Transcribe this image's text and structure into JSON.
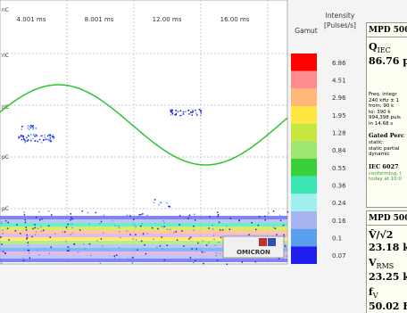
{
  "plot": {
    "time_labels": [
      "4.001 ms",
      "8.001 ms",
      "12.00 ms",
      "16.00 ms"
    ],
    "unit_labels": [
      "nC",
      "nC",
      "pC",
      "pC",
      "pC"
    ],
    "logo": "OMICRON"
  },
  "legend": {
    "title": "Gamut",
    "intensity_title": [
      "Intensity",
      "[Pulses/s]"
    ],
    "levels": [
      {
        "color": "#ff0000",
        "label": "6.86"
      },
      {
        "color": "#ff8c8c",
        "label": "4.51"
      },
      {
        "color": "#ffb878",
        "label": "2.96"
      },
      {
        "color": "#ffe640",
        "label": "1.95"
      },
      {
        "color": "#c8e640",
        "label": "1.28"
      },
      {
        "color": "#9ee66e",
        "label": "0.84"
      },
      {
        "color": "#3ccf3c",
        "label": "0.55"
      },
      {
        "color": "#3ce6b4",
        "label": "0.36"
      },
      {
        "color": "#a0f0f0",
        "label": "0.24"
      },
      {
        "color": "#a8b4f0",
        "label": "0.16"
      },
      {
        "color": "#5aa0f0",
        "label": "0.1"
      },
      {
        "color": "#1e1ef0",
        "label": "0.07"
      }
    ]
  },
  "panel1": {
    "header": "MPD 500",
    "symbol": "Q",
    "subscript": "IEC",
    "value": "86.76 p",
    "details": [
      "Freq. integr",
      "240 kHz ± 1",
      "from:  90 k",
      "to:    390 k",
      "994,398 puls",
      "in 14.68 s"
    ],
    "gated_title": "Gated Perc",
    "gated_lines": [
      "static:",
      "static partial",
      "dynamic"
    ],
    "iec_title": "IEC 6027",
    "iec_lines": [
      "conforming, (",
      "today at 10:0"
    ]
  },
  "panel2": {
    "header": "MPD 500",
    "items": [
      {
        "symbol": "V̂/√2",
        "value": "23.18 k"
      },
      {
        "symbol": "V",
        "subscript": "RMS",
        "value": "23.25 k"
      },
      {
        "symbol": "f",
        "subscript": "V",
        "value": "50.02 H"
      }
    ]
  }
}
